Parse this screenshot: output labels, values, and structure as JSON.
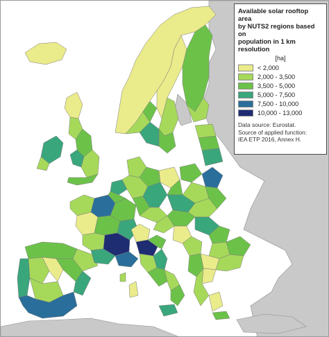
{
  "legend": {
    "title_lines": [
      "Available solar rooftop area",
      "by NUTS2 regions based on",
      "population in 1 km resolution"
    ],
    "unit": "[ha]",
    "classes": [
      {
        "label": "< 2,000",
        "color": "#eaeb8a"
      },
      {
        "label": "2,000  -  3,500",
        "color": "#a6d95a"
      },
      {
        "label": "3,500  -  5,000",
        "color": "#6cc249"
      },
      {
        "label": "5,000  -  7,500",
        "color": "#3aa67c"
      },
      {
        "label": "7,500  - 10,000",
        "color": "#2a6f9b"
      },
      {
        "label": "10,000  - 13,000",
        "color": "#1e2c72"
      }
    ],
    "source_lines": [
      "Data source: Eurostat.",
      "Source of applied function:",
      "IEA ETP 2016, Annex H."
    ]
  },
  "colors": {
    "sea": "#ffffff",
    "non_eu_land": "#c9c9c9",
    "region_border": "#7a7a7a"
  }
}
